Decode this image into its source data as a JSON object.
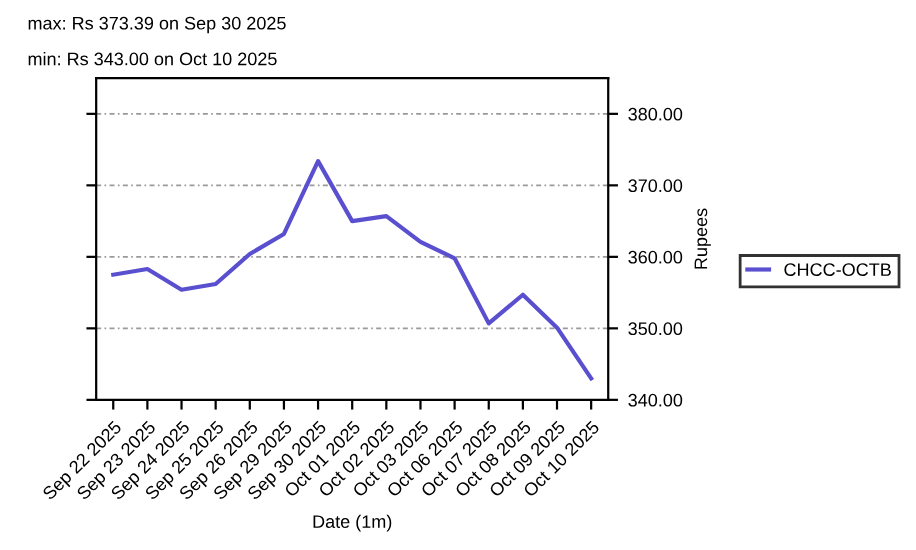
{
  "chart_data": {
    "type": "line",
    "annotations": [
      "max: Rs 373.39 on Sep 30 2025",
      "min: Rs 343.00 on Oct 10 2025"
    ],
    "categories": [
      "Sep 22 2025",
      "Sep 23 2025",
      "Sep 24 2025",
      "Sep 25 2025",
      "Sep 26 2025",
      "Sep 29 2025",
      "Sep 30 2025",
      "Oct 01 2025",
      "Oct 02 2025",
      "Oct 03 2025",
      "Oct 06 2025",
      "Oct 07 2025",
      "Oct 08 2025",
      "Oct 09 2025",
      "Oct 10 2025"
    ],
    "series": [
      {
        "name": "CHCC-OCTB",
        "color": "#5a4fcf",
        "values": [
          357.5,
          358.3,
          355.4,
          356.2,
          360.4,
          363.2,
          373.39,
          365.0,
          365.7,
          362.1,
          359.8,
          350.7,
          354.7,
          350.1,
          343.0
        ]
      }
    ],
    "xlabel": "Date (1m)",
    "ylabel": "Rupees",
    "ylim": [
      340,
      385
    ],
    "yticks": [
      {
        "value": 340,
        "label": "340.00"
      },
      {
        "value": 350,
        "label": "350.00"
      },
      {
        "value": 360,
        "label": "360.00"
      },
      {
        "value": 370,
        "label": "370.00"
      },
      {
        "value": 380,
        "label": "380.00"
      }
    ],
    "grid": "y",
    "legend": "right",
    "marker": "none",
    "line_style": "solid"
  }
}
